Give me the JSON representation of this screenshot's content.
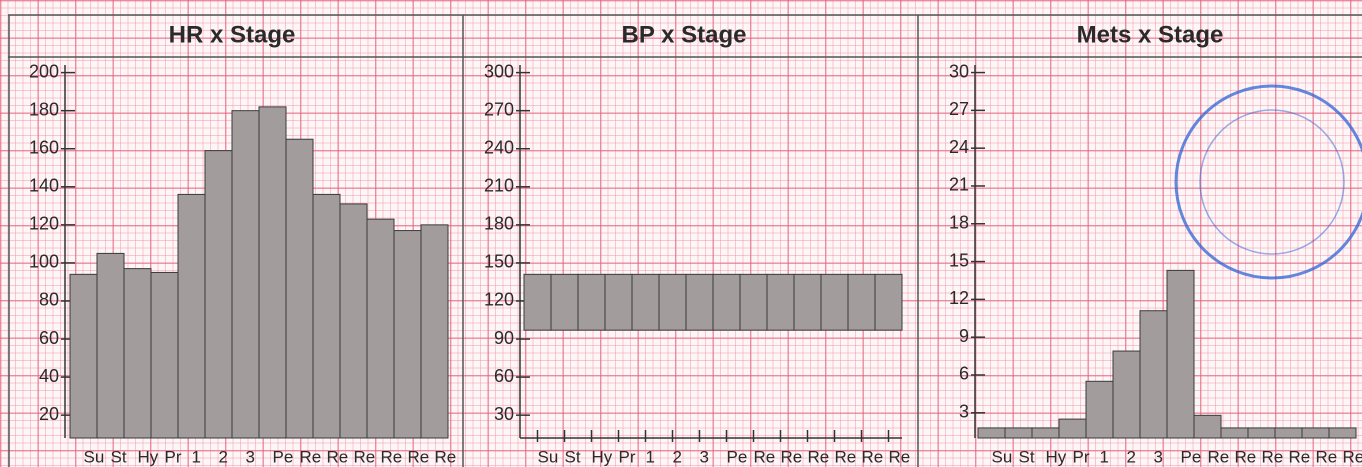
{
  "chart_data": [
    {
      "type": "bar",
      "title": "HR x Stage",
      "categories": [
        "Su",
        "St",
        "Hy",
        "Pr",
        "1",
        "2",
        "3",
        "Pe",
        "Re",
        "Re",
        "Re",
        "Re",
        "Re",
        "Re"
      ],
      "values": [
        94,
        105,
        97,
        95,
        136,
        159,
        180,
        182,
        165,
        136,
        131,
        123,
        117,
        120
      ],
      "color": "#a39c9d",
      "ylim": [
        8,
        204
      ],
      "yticks": [
        20,
        40,
        60,
        80,
        100,
        120,
        140,
        160,
        180,
        200
      ]
    },
    {
      "type": "range-bar",
      "title": "BP x Stage",
      "categories": [
        "Su",
        "St",
        "Hy",
        "Pr",
        "1",
        "2",
        "3",
        "Pe",
        "Re",
        "Re",
        "Re",
        "Re",
        "Re",
        "Re"
      ],
      "low": [
        97,
        97,
        97,
        97,
        97,
        97,
        97,
        97,
        97,
        97,
        97,
        97,
        97,
        97
      ],
      "high": [
        141,
        141,
        141,
        141,
        141,
        141,
        141,
        141,
        141,
        141,
        141,
        141,
        141,
        141
      ],
      "color": "#a39c9d",
      "ylim": [
        12,
        306
      ],
      "yticks": [
        30,
        60,
        90,
        120,
        150,
        180,
        210,
        240,
        270,
        300
      ]
    },
    {
      "type": "bar",
      "title": "Mets x Stage",
      "categories": [
        "Su",
        "St",
        "Hy",
        "Pr",
        "1",
        "2",
        "3",
        "Pe",
        "Re",
        "Re",
        "Re",
        "Re",
        "Re",
        "Re"
      ],
      "values": [
        1.8,
        1.8,
        1.8,
        2.5,
        5.5,
        7.9,
        11.1,
        14.3,
        2.8,
        1.8,
        1.8,
        1.8,
        1.8,
        1.8
      ],
      "color": "#a39c9d",
      "ylim": [
        1,
        30.6
      ],
      "yticks": [
        3,
        6,
        9,
        12,
        15,
        18,
        21,
        24,
        27,
        30
      ]
    }
  ]
}
